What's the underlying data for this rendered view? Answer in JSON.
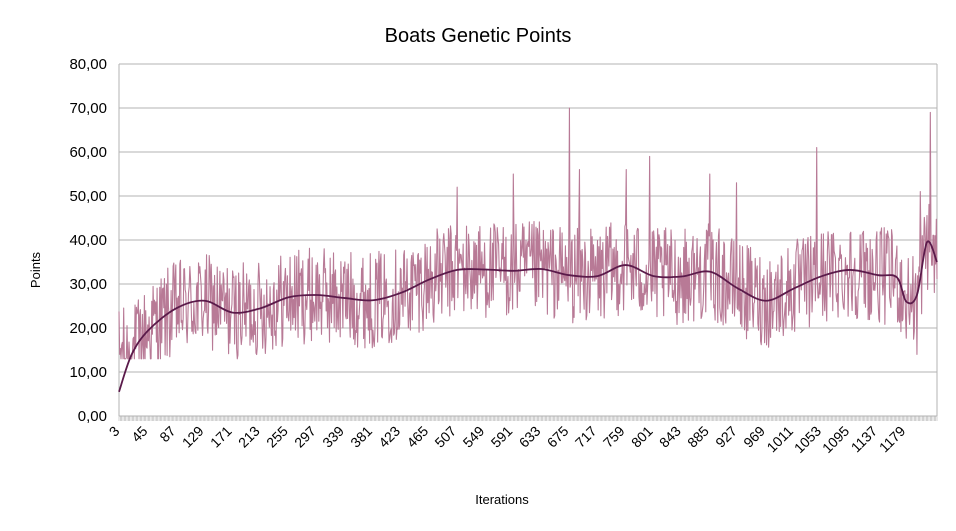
{
  "chart_data": {
    "type": "line",
    "title": "Boats Genetic Points",
    "xlabel": "Iterations",
    "ylabel": "Points",
    "ylim": [
      0,
      80
    ],
    "xlim": [
      1,
      1225
    ],
    "y_ticks": [
      "0,00",
      "10,00",
      "20,00",
      "30,00",
      "40,00",
      "50,00",
      "60,00",
      "70,00",
      "80,00"
    ],
    "x_ticks": [
      "3",
      "45",
      "87",
      "129",
      "171",
      "213",
      "255",
      "297",
      "339",
      "381",
      "423",
      "465",
      "507",
      "549",
      "591",
      "633",
      "675",
      "717",
      "759",
      "801",
      "843",
      "885",
      "927",
      "969",
      "1011",
      "1053",
      "1095",
      "1137",
      "1179"
    ],
    "grid": "horizontal",
    "series": [
      {
        "role": "raw",
        "color": "#b87a96",
        "noise_band": 11,
        "spikes": [
          [
            507,
            52
          ],
          [
            591,
            55
          ],
          [
            675,
            70
          ],
          [
            690,
            56
          ],
          [
            760,
            56
          ],
          [
            795,
            59
          ],
          [
            885,
            55
          ],
          [
            925,
            53
          ],
          [
            1045,
            61
          ],
          [
            1215,
            69
          ],
          [
            1200,
            51
          ],
          [
            1195,
            14
          ]
        ]
      },
      {
        "role": "trend",
        "color": "#5a1a4a",
        "x": [
          1,
          20,
          45,
          87,
          129,
          171,
          213,
          255,
          297,
          339,
          381,
          423,
          465,
          507,
          549,
          591,
          633,
          675,
          717,
          759,
          801,
          843,
          885,
          927,
          969,
          1011,
          1053,
          1095,
          1137,
          1165,
          1179,
          1195,
          1210,
          1225
        ],
        "values": [
          5.5,
          14,
          19.5,
          24.5,
          26.2,
          23.5,
          24.5,
          27,
          27.5,
          26.8,
          26.3,
          28,
          31,
          33.2,
          33.3,
          33,
          33.4,
          32,
          31.8,
          34.3,
          31.8,
          31.7,
          32.8,
          29,
          26.2,
          29,
          31.8,
          33.2,
          32,
          31.5,
          26,
          27.5,
          39.5,
          35
        ]
      }
    ]
  }
}
